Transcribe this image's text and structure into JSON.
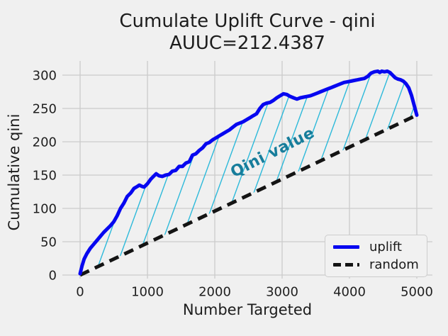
{
  "figure": {
    "title_line1": "Cumulate Uplift Curve - qini",
    "title_line2": "AUUC=212.4387"
  },
  "annotation": {
    "label": "Qini value"
  },
  "legend": {
    "position": "lower right",
    "items": [
      {
        "label": "uplift",
        "style": "solid"
      },
      {
        "label": "random",
        "style": "dashed"
      }
    ]
  },
  "colors": {
    "background": "#f0f0f0",
    "grid": "#cbcbcb",
    "uplift": "#0707f0",
    "random": "#141414",
    "hatch": "#2cb9da",
    "annotation": "#177d9b",
    "text": "#1f1f1f"
  },
  "chart_data": {
    "type": "line",
    "title": "Cumulate Uplift Curve - qini AUUC=212.4387",
    "auuc": 212.4387,
    "xlabel": "Number Targeted",
    "ylabel": "Cumulative qini",
    "x_ticks": [
      0,
      1000,
      2000,
      3000,
      4000,
      5000
    ],
    "y_ticks": [
      0,
      50,
      100,
      150,
      200,
      250,
      300
    ],
    "xlim": [
      -260,
      5230
    ],
    "ylim": [
      -5,
      321
    ],
    "grid": true,
    "series": [
      {
        "name": "uplift",
        "style": "solid",
        "points": [
          [
            0,
            2
          ],
          [
            30,
            14
          ],
          [
            60,
            24
          ],
          [
            100,
            32
          ],
          [
            150,
            40
          ],
          [
            200,
            46
          ],
          [
            250,
            52
          ],
          [
            300,
            58
          ],
          [
            350,
            64
          ],
          [
            400,
            69
          ],
          [
            450,
            74
          ],
          [
            500,
            80
          ],
          [
            550,
            89
          ],
          [
            600,
            100
          ],
          [
            650,
            108
          ],
          [
            700,
            118
          ],
          [
            750,
            123
          ],
          [
            800,
            130
          ],
          [
            850,
            133
          ],
          [
            880,
            135
          ],
          [
            920,
            133
          ],
          [
            950,
            132
          ],
          [
            1000,
            137
          ],
          [
            1050,
            144
          ],
          [
            1100,
            149
          ],
          [
            1130,
            152
          ],
          [
            1170,
            149
          ],
          [
            1220,
            148
          ],
          [
            1270,
            150
          ],
          [
            1320,
            151
          ],
          [
            1370,
            156
          ],
          [
            1420,
            157
          ],
          [
            1470,
            163
          ],
          [
            1520,
            163
          ],
          [
            1570,
            168
          ],
          [
            1620,
            170
          ],
          [
            1670,
            180
          ],
          [
            1720,
            182
          ],
          [
            1770,
            187
          ],
          [
            1820,
            191
          ],
          [
            1870,
            197
          ],
          [
            1920,
            199
          ],
          [
            1970,
            203
          ],
          [
            2020,
            206
          ],
          [
            2070,
            209
          ],
          [
            2120,
            212
          ],
          [
            2170,
            215
          ],
          [
            2220,
            218
          ],
          [
            2270,
            222
          ],
          [
            2320,
            226
          ],
          [
            2370,
            228
          ],
          [
            2420,
            230
          ],
          [
            2470,
            233
          ],
          [
            2520,
            236
          ],
          [
            2570,
            239
          ],
          [
            2620,
            242
          ],
          [
            2670,
            250
          ],
          [
            2720,
            256
          ],
          [
            2770,
            258
          ],
          [
            2820,
            259
          ],
          [
            2870,
            262
          ],
          [
            2920,
            266
          ],
          [
            2970,
            269
          ],
          [
            3020,
            272
          ],
          [
            3070,
            271
          ],
          [
            3120,
            268
          ],
          [
            3170,
            266
          ],
          [
            3220,
            264
          ],
          [
            3270,
            266
          ],
          [
            3320,
            267
          ],
          [
            3370,
            268
          ],
          [
            3420,
            269
          ],
          [
            3470,
            271
          ],
          [
            3520,
            273
          ],
          [
            3570,
            275
          ],
          [
            3620,
            277
          ],
          [
            3670,
            279
          ],
          [
            3720,
            281
          ],
          [
            3770,
            283
          ],
          [
            3820,
            285
          ],
          [
            3870,
            287
          ],
          [
            3920,
            289
          ],
          [
            3970,
            290
          ],
          [
            4020,
            291
          ],
          [
            4070,
            292
          ],
          [
            4120,
            293
          ],
          [
            4170,
            294
          ],
          [
            4220,
            295
          ],
          [
            4270,
            298
          ],
          [
            4320,
            303
          ],
          [
            4370,
            305
          ],
          [
            4420,
            306
          ],
          [
            4450,
            304
          ],
          [
            4480,
            306
          ],
          [
            4520,
            305
          ],
          [
            4560,
            306
          ],
          [
            4600,
            304
          ],
          [
            4640,
            300
          ],
          [
            4680,
            296
          ],
          [
            4720,
            294
          ],
          [
            4760,
            293
          ],
          [
            4800,
            291
          ],
          [
            4840,
            287
          ],
          [
            4880,
            281
          ],
          [
            4920,
            270
          ],
          [
            4960,
            255
          ],
          [
            5000,
            240
          ]
        ]
      },
      {
        "name": "random",
        "style": "dashed",
        "points": [
          [
            0,
            0
          ],
          [
            5000,
            240
          ]
        ]
      }
    ],
    "hatch_region": {
      "between": [
        "uplift",
        "random"
      ],
      "label": "Qini value"
    }
  }
}
